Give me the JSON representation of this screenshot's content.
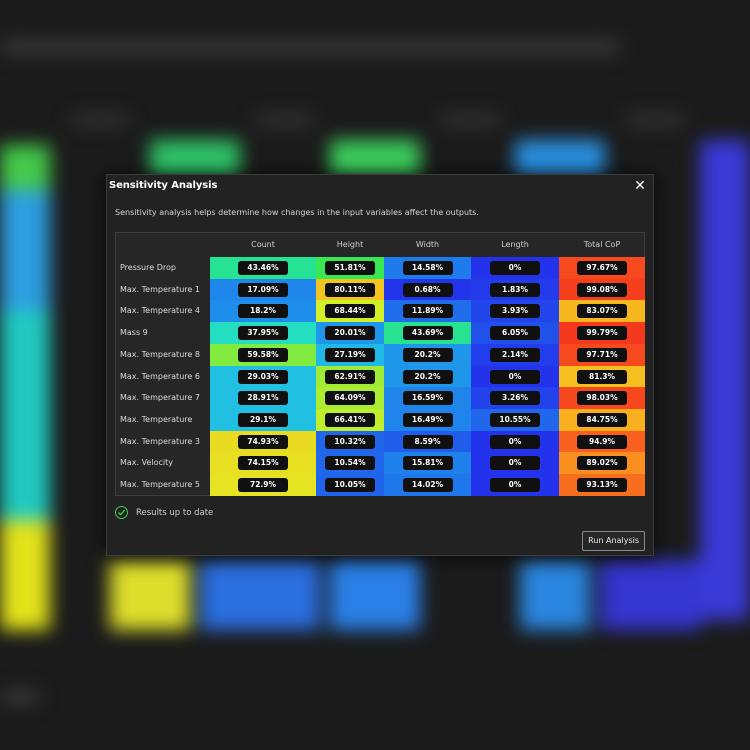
{
  "dialog": {
    "title": "Sensitivity Analysis",
    "close_glyph": "✕",
    "description": "Sensitivity analysis helps determine how changes in the input variables affect the outputs.",
    "status_text": "Results up to date",
    "status_icon": "check-circle-icon",
    "status_color": "#3bd048",
    "run_label": "Run Analysis"
  },
  "table": {
    "columns": [
      "Count",
      "Height",
      "Width",
      "Length",
      "Total CoP"
    ],
    "rows": [
      {
        "label": "Pressure Drop",
        "values": [
          "43.46%",
          "51.81%",
          "14.58%",
          "0%",
          "97.67%"
        ]
      },
      {
        "label": "Max. Temperature 1",
        "values": [
          "17.09%",
          "80.11%",
          "0.68%",
          "1.83%",
          "99.08%"
        ]
      },
      {
        "label": "Max. Temperature 4",
        "values": [
          "18.2%",
          "68.44%",
          "11.89%",
          "3.93%",
          "83.07%"
        ]
      },
      {
        "label": "Mass 9",
        "values": [
          "37.95%",
          "20.01%",
          "43.69%",
          "6.05%",
          "99.79%"
        ]
      },
      {
        "label": "Max. Temperature 8",
        "values": [
          "59.58%",
          "27.19%",
          "20.2%",
          "2.14%",
          "97.71%"
        ]
      },
      {
        "label": "Max. Temperature 6",
        "values": [
          "29.03%",
          "62.91%",
          "20.2%",
          "0%",
          "81.3%"
        ]
      },
      {
        "label": "Max. Temperature 7",
        "values": [
          "28.91%",
          "64.09%",
          "16.59%",
          "3.26%",
          "98.03%"
        ]
      },
      {
        "label": "Max. Temperature",
        "values": [
          "29.1%",
          "66.41%",
          "16.49%",
          "10.55%",
          "84.75%"
        ]
      },
      {
        "label": "Max. Temperature 3",
        "values": [
          "74.93%",
          "10.32%",
          "8.59%",
          "0%",
          "94.9%"
        ]
      },
      {
        "label": "Max. Velocity",
        "values": [
          "74.15%",
          "10.54%",
          "15.81%",
          "0%",
          "89.02%"
        ]
      },
      {
        "label": "Max. Temperature 5",
        "values": [
          "72.9%",
          "10.05%",
          "14.02%",
          "0%",
          "93.13%"
        ]
      }
    ]
  }
}
